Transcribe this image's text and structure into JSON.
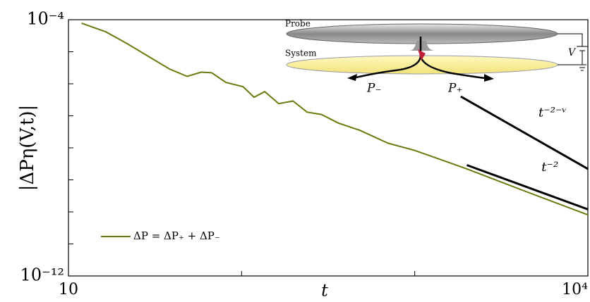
{
  "chart_data": {
    "type": "line",
    "log_x": true,
    "log_y": true,
    "xlabel": "t",
    "ylabel": "|ΔPη(V,t)|",
    "xlim": [
      10,
      10000
    ],
    "ylim": [
      1e-12,
      0.0001
    ],
    "xticks": [
      10,
      {
        "value": 10000,
        "label": "10⁴"
      }
    ],
    "xminorticks": [
      100,
      1000
    ],
    "yticks": [
      {
        "value": 0.0001,
        "label": "10⁻⁴"
      },
      {
        "value": 1e-12,
        "label": "10⁻¹²"
      }
    ],
    "yminorticks": [
      1e-11,
      1e-10,
      1e-09,
      1e-08,
      1e-07,
      1e-06,
      1e-05
    ],
    "legend": "lower left",
    "series": [
      {
        "name": "ΔP = ΔP₊ + ΔP₋",
        "color": "#6b7a0f",
        "x": [
          11.9,
          16.4,
          21.8,
          28.9,
          38.3,
          48.5,
          58.4,
          67.2,
          81.2,
          102,
          118,
          136,
          164,
          198,
          239,
          289,
          363,
          483,
          701,
          1000,
          2000,
          4170,
          10000
        ],
        "values": [
          7.8e-05,
          4.2e-05,
          1.8e-05,
          7.2e-06,
          2.9e-06,
          1.7e-06,
          2.3e-06,
          2.2e-06,
          1.1e-06,
          8.1e-07,
          3.8e-07,
          5.7e-07,
          2.4e-07,
          2.9e-07,
          1.3e-07,
          1.1e-07,
          5.9e-08,
          3.5e-08,
          1.4e-08,
          8.3e-09,
          2.2e-09,
          4.8e-10,
          8.1e-11
        ]
      },
      {
        "name": "t⁻²",
        "color": "#000000",
        "x": [
          2000,
          10000
        ],
        "values": [
          2.9e-09,
          1.2e-10
        ]
      },
      {
        "name": "t⁻²⁻ᵛ",
        "color": "#000000",
        "x": [
          1845,
          10000
        ],
        "values": [
          4e-07,
          2.2e-09
        ]
      }
    ]
  },
  "inset": {
    "probe": "Probe",
    "system": "System",
    "voltage": "V",
    "p_minus": "P₋",
    "p_plus": "P₊"
  }
}
